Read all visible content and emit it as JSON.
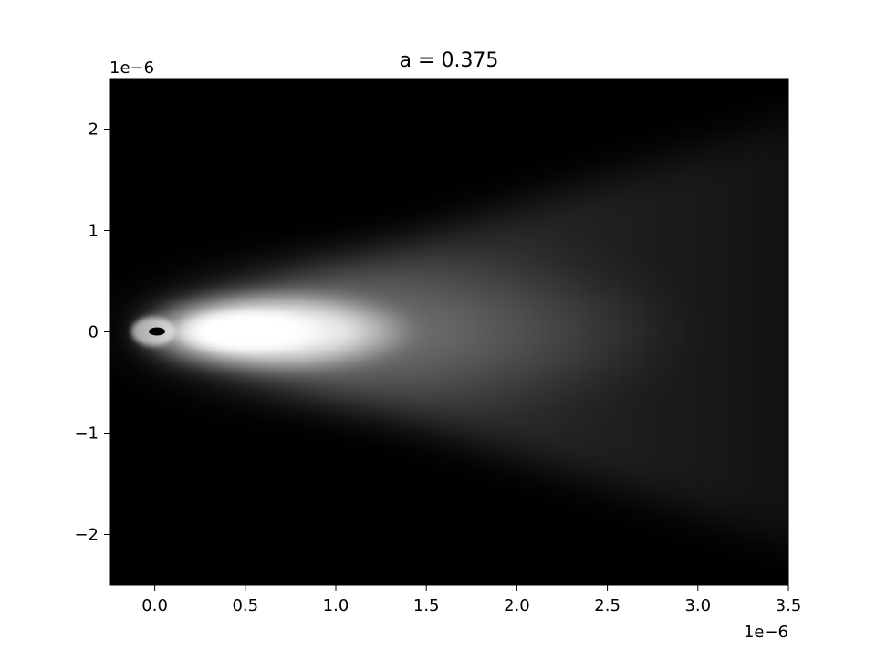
{
  "chart_data": {
    "type": "heatmap",
    "title": "a = 0.375",
    "xlabel": "",
    "ylabel": "",
    "x_offset_text": "1e−6",
    "y_offset_text": "1e−6",
    "xlim": [
      -2.5e-07,
      3.5e-06
    ],
    "ylim": [
      -2.5e-06,
      2.5e-06
    ],
    "x_ticks": [
      0.0,
      5e-07,
      1e-06,
      1.5e-06,
      2e-06,
      2.5e-06,
      3e-06,
      3.5e-06
    ],
    "x_tick_labels": [
      "0.0",
      "0.5",
      "1.0",
      "1.5",
      "2.0",
      "2.5",
      "3.0",
      "3.5"
    ],
    "y_ticks": [
      -2e-06,
      -1e-06,
      0,
      1e-06,
      2e-06
    ],
    "y_tick_labels": [
      "−2",
      "−1",
      "0",
      "1",
      "2"
    ],
    "colormap": "gray",
    "background_color": "#000000",
    "grid": false,
    "legend": "none"
  }
}
